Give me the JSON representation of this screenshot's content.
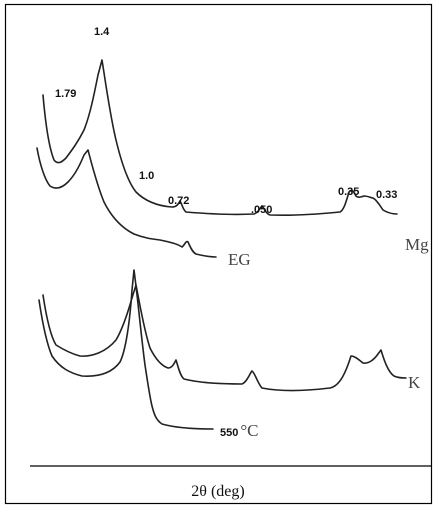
{
  "chart_data": {
    "type": "line",
    "title": "",
    "xlabel": "2θ (deg)",
    "ylabel": "",
    "grid": false,
    "legend": "none",
    "peak_labels": [
      "1.79",
      "1.4",
      "1.0",
      "0.72",
      ".050",
      "0.35",
      "0.33"
    ],
    "series": [
      {
        "name": "Mg",
        "label": "Mg",
        "peaks": [
          "1.79",
          "1.4",
          "1.0",
          "0.72",
          ".050",
          "0.35",
          "0.33"
        ]
      },
      {
        "name": "EG",
        "label": "EG",
        "peaks": [
          "1.79",
          "1.4",
          "1.0",
          "0.72"
        ]
      },
      {
        "name": "K",
        "label": "K",
        "peaks": [
          "1.0",
          "0.72",
          ".050",
          "0.35",
          "0.33"
        ]
      },
      {
        "name": "550°C",
        "label_value": "550",
        "label_unit": "°C",
        "peaks": [
          "1.0"
        ]
      }
    ],
    "colors": {
      "trace": "#222222",
      "border": "#000000",
      "background": "#ffffff"
    }
  }
}
